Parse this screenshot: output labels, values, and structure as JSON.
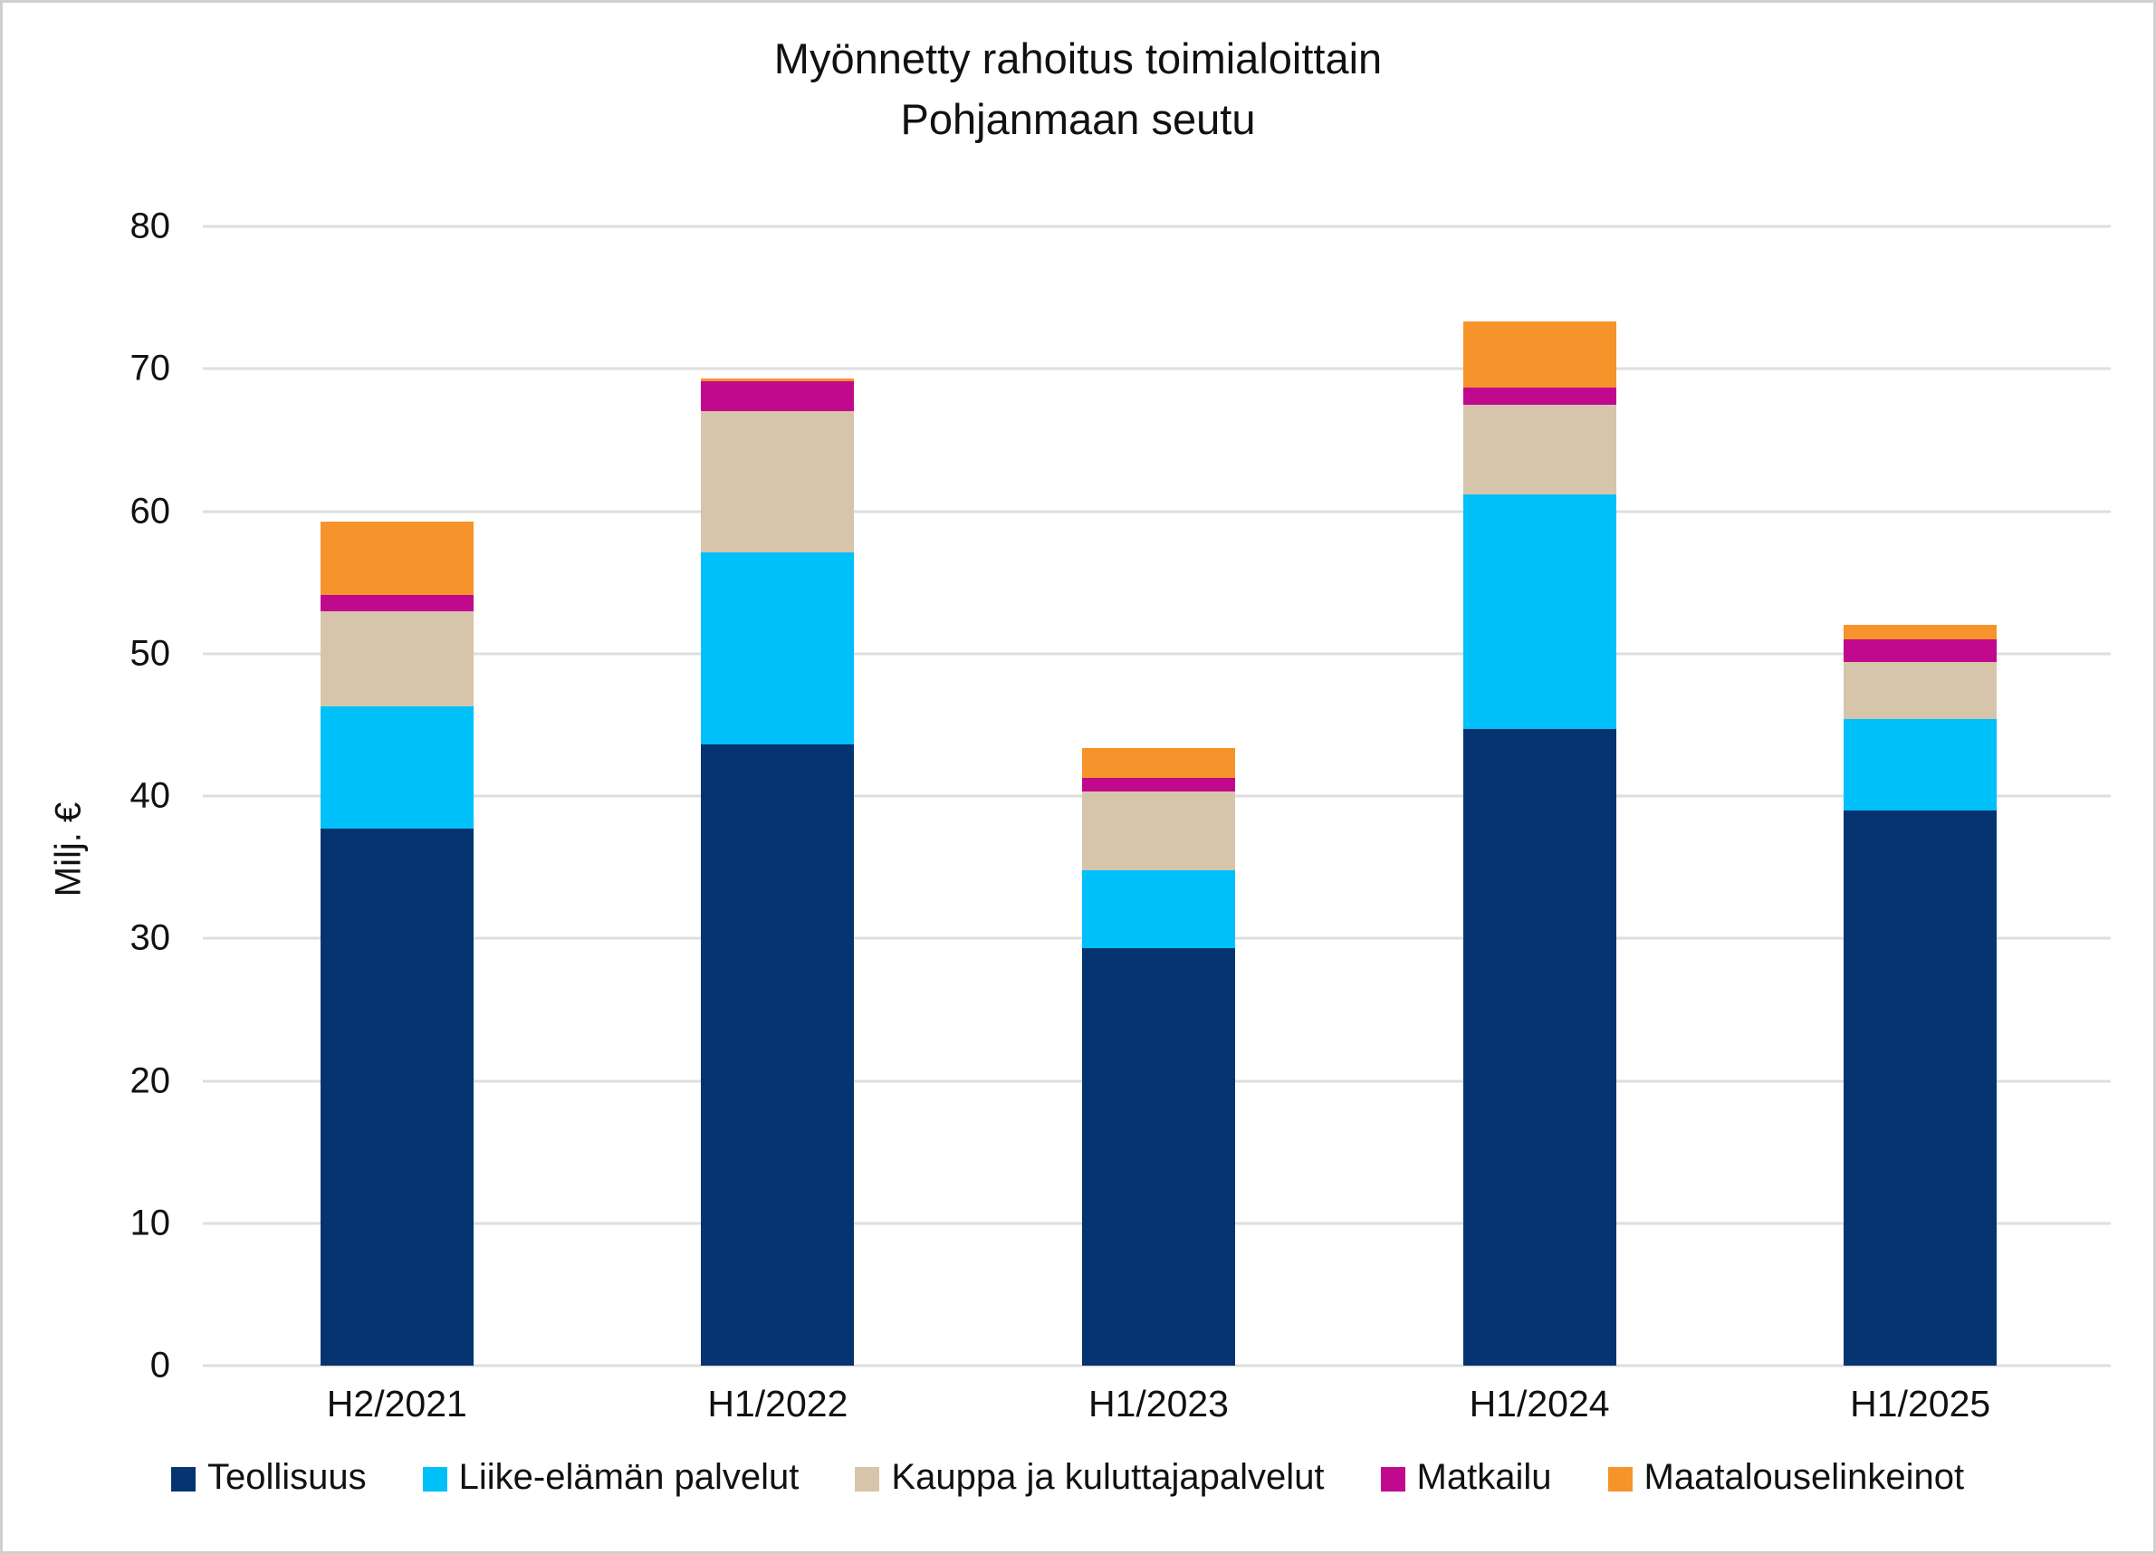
{
  "title": {
    "line1": "Myönnetty rahoitus toimialoittain",
    "line2": "Pohjanmaan seutu"
  },
  "y_axis": {
    "label": "Milj. €",
    "tick_labels": [
      "0",
      "10",
      "20",
      "30",
      "40",
      "50",
      "60",
      "70",
      "80"
    ],
    "min": 0,
    "max": 80,
    "step": 10
  },
  "chart_data": {
    "type": "bar",
    "stacked": true,
    "title": "Myönnetty rahoitus toimialoittain Pohjanmaan seutu",
    "xlabel": "",
    "ylabel": "Milj. €",
    "ylim": [
      0,
      80
    ],
    "grid": "horizontal",
    "legend_position": "bottom",
    "categories": [
      "H2/2021",
      "H1/2022",
      "H1/2023",
      "H1/2024",
      "H1/2025"
    ],
    "series": [
      {
        "name": "Teollisuus",
        "color": "#063470",
        "values": [
          37.7,
          43.6,
          29.3,
          44.7,
          39.0
        ]
      },
      {
        "name": "Liike-elämän palvelut",
        "color": "#00c0fa",
        "values": [
          8.6,
          13.5,
          5.5,
          16.5,
          6.4
        ]
      },
      {
        "name": "Kauppa ja kuluttajapalvelut",
        "color": "#d6c5aa",
        "values": [
          6.7,
          9.9,
          5.5,
          6.3,
          4.0
        ]
      },
      {
        "name": "Matkailu",
        "color": "#c0098c",
        "values": [
          1.1,
          2.1,
          1.0,
          1.2,
          1.6
        ]
      },
      {
        "name": "Maatalouselinkeinot",
        "color": "#f6932a",
        "values": [
          5.2,
          0.2,
          2.1,
          4.6,
          1.0
        ]
      }
    ],
    "totals": [
      59.3,
      69.3,
      43.4,
      73.3,
      52.0
    ]
  },
  "colors": {
    "gridline": "#dedede",
    "background": "#ffffff",
    "border": "#cfcfcf",
    "text": "#111111"
  }
}
